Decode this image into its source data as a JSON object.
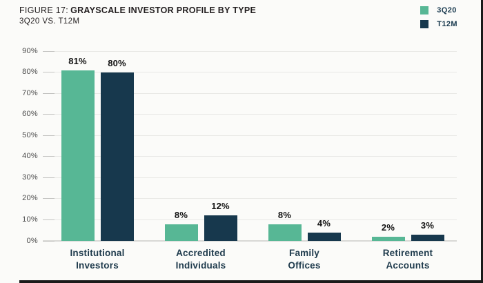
{
  "figure": {
    "label": "FIGURE 17:",
    "title": "GRAYSCALE INVESTOR PROFILE BY TYPE",
    "subtitle": "3Q20 VS. T12M"
  },
  "legend": [
    {
      "label": "3Q20",
      "color": "#57b795"
    },
    {
      "label": "T12M",
      "color": "#17384d"
    }
  ],
  "chart_data": {
    "type": "bar",
    "title": "Grayscale Investor Profile by Type, 3Q20 vs. T12M",
    "categories": [
      "Institutional Investors",
      "Accredited Individuals",
      "Family Offices",
      "Retirement Accounts"
    ],
    "categories_wrapped": [
      [
        "Institutional",
        "Investors"
      ],
      [
        "Accredited",
        "Individuals"
      ],
      [
        "Family",
        "Offices"
      ],
      [
        "Retirement",
        "Accounts"
      ]
    ],
    "series": [
      {
        "name": "3Q20",
        "color": "#57b795",
        "values": [
          81,
          8,
          8,
          2
        ]
      },
      {
        "name": "T12M",
        "color": "#17384d",
        "values": [
          80,
          12,
          4,
          3
        ]
      }
    ],
    "value_labels": [
      [
        "81%",
        "8%",
        "8%",
        "2%"
      ],
      [
        "80%",
        "12%",
        "4%",
        "3%"
      ]
    ],
    "xlabel": "",
    "ylabel": "",
    "ylim": [
      0,
      90
    ],
    "ytick_step": 10,
    "ytick_labels": [
      "0%",
      "10%",
      "20%",
      "30%",
      "40%",
      "50%",
      "60%",
      "70%",
      "80%",
      "90%"
    ],
    "grid": "horizontal",
    "legend_position": "top-right"
  },
  "colors": {
    "background": "#fbfbf9",
    "grid": "#e8e8e5",
    "baseline": "#d8d8d5",
    "tick": "#c2c2c0",
    "axis_label": "#4b4b4b",
    "category_label": "#1e3a4c",
    "value_label": "#121212",
    "title": "#231f20",
    "edge": "#1a1a1a"
  }
}
